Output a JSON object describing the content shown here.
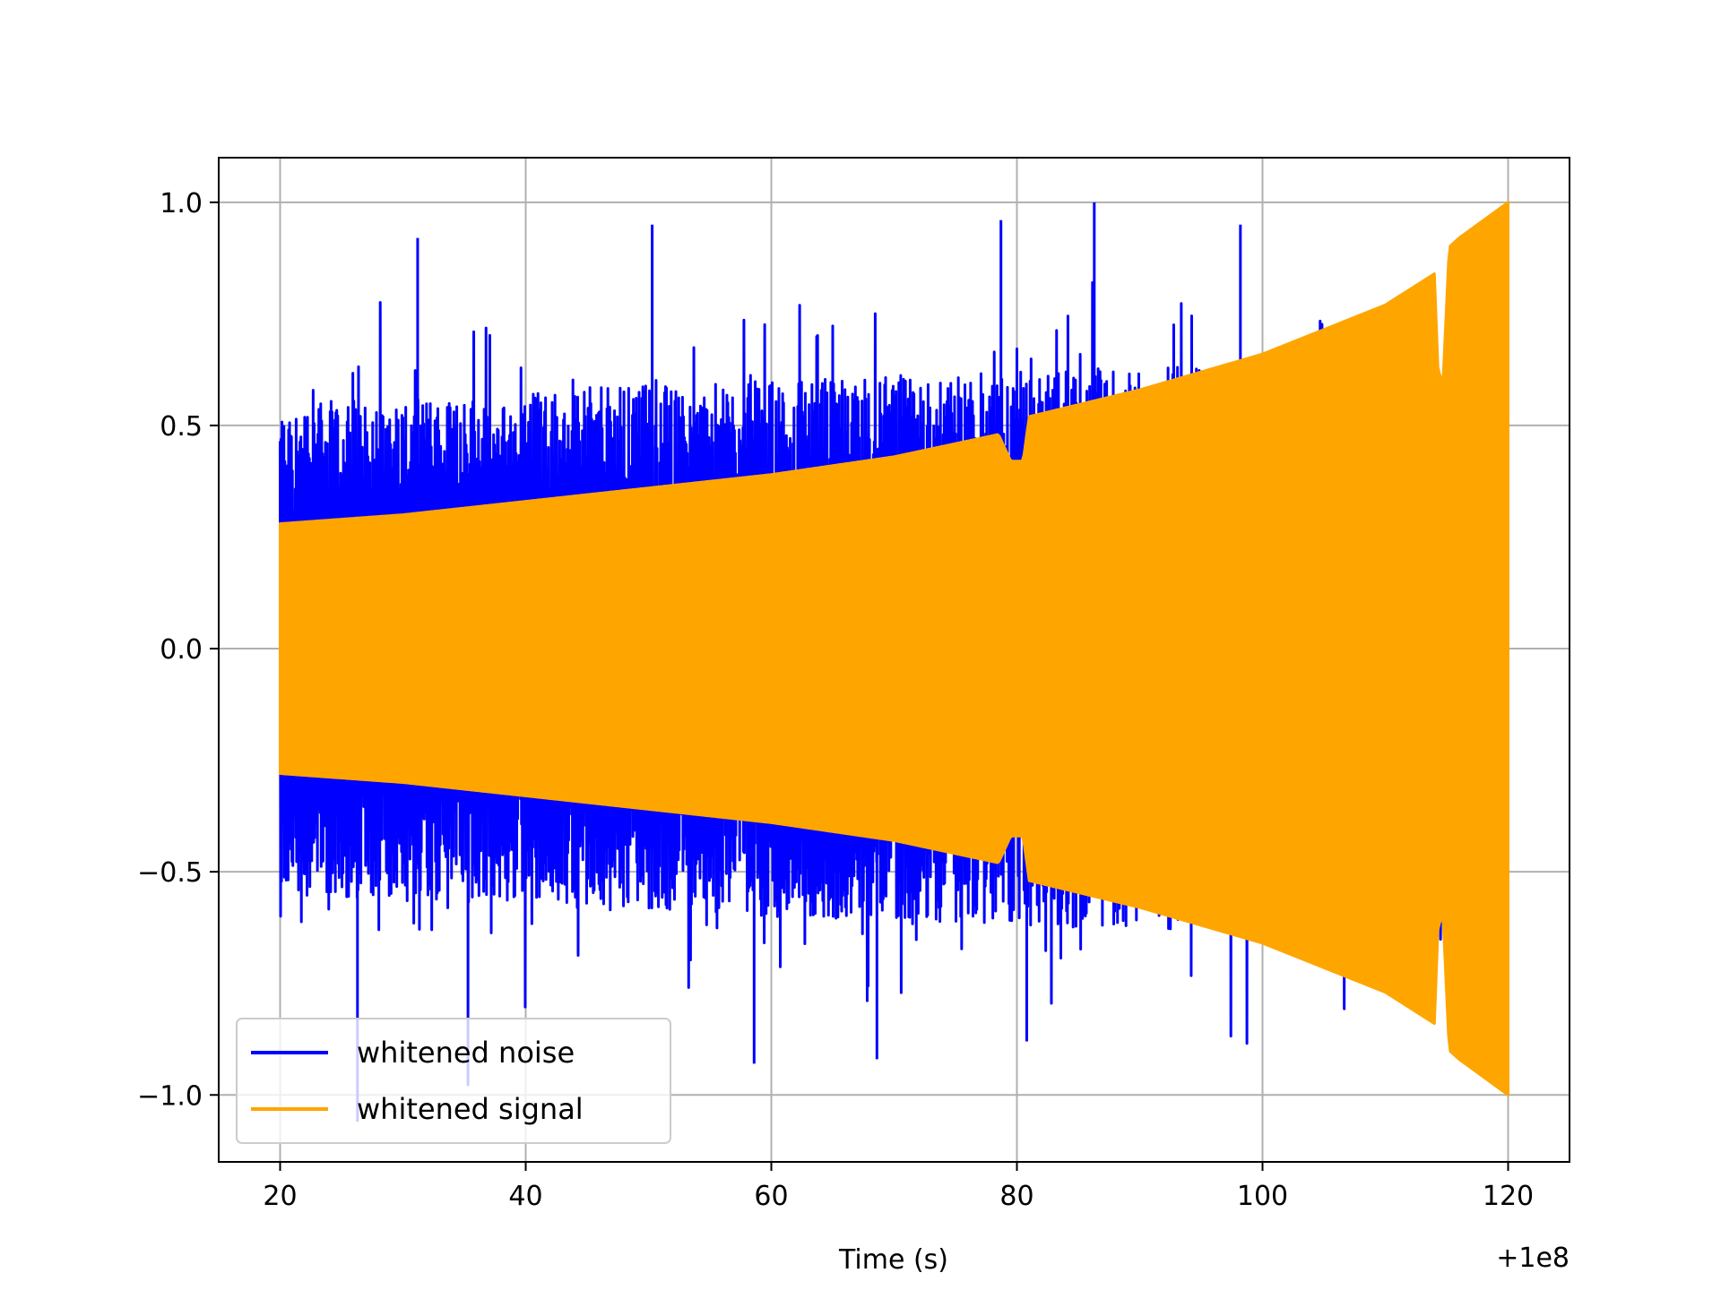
{
  "chart_data": {
    "type": "line",
    "title": "",
    "xlabel": "Time (s)",
    "ylabel": "",
    "x_offset_label": "+1e8",
    "xlim": [
      15,
      125
    ],
    "ylim": [
      -1.15,
      1.1
    ],
    "x_ticks": [
      20,
      40,
      60,
      80,
      100,
      120
    ],
    "x_tick_labels": [
      "20",
      "40",
      "60",
      "80",
      "100",
      "120"
    ],
    "y_ticks": [
      -1.0,
      -0.5,
      0.0,
      0.5,
      1.0
    ],
    "y_tick_labels": [
      "−1.0",
      "−0.5",
      "0.0",
      "0.5",
      "1.0"
    ],
    "grid": true,
    "legend_position": "lower-left",
    "series": [
      {
        "name": "whitened noise",
        "color": "#0000ff",
        "x_range": [
          20,
          120
        ],
        "band_envelope": {
          "t": [
            20,
            40,
            60,
            80,
            100,
            120
          ],
          "upper_typical": [
            0.55,
            0.58,
            0.6,
            0.62,
            0.64,
            0.66
          ],
          "lower_typical": [
            -0.55,
            -0.58,
            -0.6,
            -0.62,
            -0.64,
            -0.66
          ]
        },
        "peaks": [
          {
            "t": 86.3,
            "y": 1.0
          },
          {
            "t": 78.7,
            "y": 0.96
          },
          {
            "t": 50.3,
            "y": 0.95
          },
          {
            "t": 31.2,
            "y": 0.92
          },
          {
            "t": 98.2,
            "y": 0.95
          },
          {
            "t": 26.3,
            "y": -1.06
          },
          {
            "t": 35.3,
            "y": -0.98
          },
          {
            "t": 58.6,
            "y": -0.93
          },
          {
            "t": 68.6,
            "y": -0.92
          },
          {
            "t": 80.8,
            "y": -0.88
          }
        ]
      },
      {
        "name": "whitened signal",
        "color": "#ffa500",
        "x_range": [
          20,
          120
        ],
        "envelope": {
          "t": [
            20,
            30,
            40,
            50,
            60,
            70,
            78.5,
            79.5,
            80.5,
            81.0,
            90,
            100,
            110,
            114,
            114.3,
            114.7,
            115.2,
            116,
            120
          ],
          "amplitude": [
            0.28,
            0.3,
            0.33,
            0.36,
            0.39,
            0.43,
            0.48,
            0.42,
            0.42,
            0.52,
            0.58,
            0.66,
            0.77,
            0.84,
            0.62,
            0.6,
            0.9,
            0.92,
            1.0
          ]
        }
      }
    ]
  }
}
